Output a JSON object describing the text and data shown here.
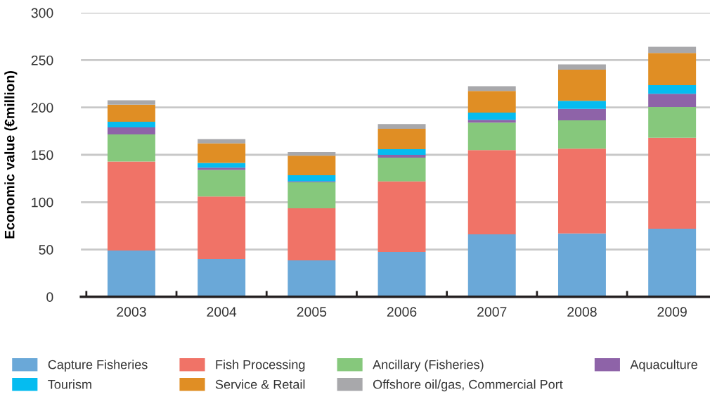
{
  "chart_data": {
    "type": "bar",
    "stacked": true,
    "ylabel": "Economic value (€million)",
    "categories": [
      "2003",
      "2004",
      "2005",
      "2006",
      "2007",
      "2008",
      "2009"
    ],
    "series": [
      {
        "name": "Capture Fisheries",
        "color": "#6aa8d8",
        "values": [
          49,
          40,
          38.5,
          47.5,
          66,
          67,
          72
        ]
      },
      {
        "name": "Fish Processing",
        "color": "#f07367",
        "values": [
          94,
          66,
          55,
          74.5,
          89,
          89.5,
          96
        ]
      },
      {
        "name": "Ancillary (Fisheries)",
        "color": "#86c87c",
        "values": [
          28.5,
          28,
          27.5,
          25,
          29,
          30,
          32.5
        ]
      },
      {
        "name": "Aquaculture",
        "color": "#8e63a8",
        "values": [
          7.5,
          2.5,
          1,
          3,
          3,
          12,
          14
        ]
      },
      {
        "name": "Tourism",
        "color": "#05bcf0",
        "values": [
          6,
          5,
          6.5,
          6,
          7.5,
          8.5,
          9
        ]
      },
      {
        "name": "Service & Retail",
        "color": "#e08e24",
        "values": [
          18,
          20.5,
          20.5,
          21.5,
          23,
          33,
          34
        ]
      },
      {
        "name": "Offshore oil/gas, Commercial Port",
        "color": "#a8a8ab",
        "values": [
          4.5,
          4.5,
          4,
          5,
          5,
          5.5,
          6.5
        ]
      }
    ],
    "ylim": [
      0,
      300
    ],
    "yticks": [
      0,
      50,
      100,
      150,
      200,
      250,
      300
    ],
    "grid": "y",
    "legend": "bottom"
  }
}
